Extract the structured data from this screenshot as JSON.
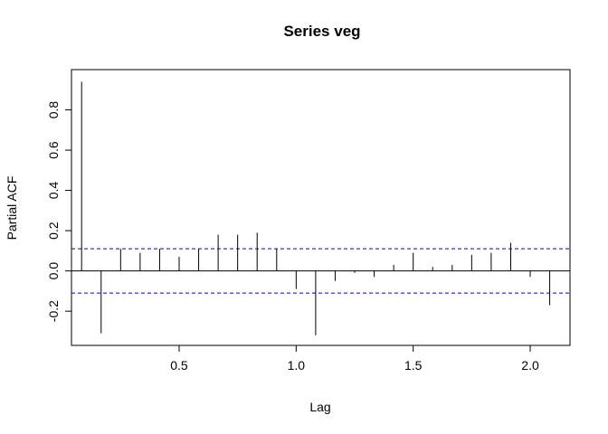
{
  "chart_data": {
    "type": "bar",
    "title": "Series  veg",
    "xlabel": "Lag",
    "ylabel": "Partial ACF",
    "xlim": [
      0.04,
      2.17
    ],
    "ylim": [
      -0.37,
      1.0
    ],
    "xticks": [
      0.5,
      1.0,
      1.5,
      2.0
    ],
    "xtick_labels": [
      "0.5",
      "1.0",
      "1.5",
      "2.0"
    ],
    "yticks": [
      -0.2,
      0.0,
      0.2,
      0.4,
      0.6,
      0.8
    ],
    "ytick_labels": [
      "-0.2",
      "0.0",
      "0.2",
      "0.4",
      "0.6",
      "0.8"
    ],
    "confidence_bound": 0.11,
    "colors": {
      "bars": "#000000",
      "bounds": "#0000cc",
      "zero_line": "#000000"
    },
    "x": [
      0.0833,
      0.1667,
      0.25,
      0.3333,
      0.4167,
      0.5,
      0.5833,
      0.6667,
      0.75,
      0.8333,
      0.9167,
      1.0,
      1.0833,
      1.1667,
      1.25,
      1.3333,
      1.4167,
      1.5,
      1.5833,
      1.6667,
      1.75,
      1.8333,
      1.9167,
      2.0,
      2.0833
    ],
    "values": [
      0.94,
      -0.31,
      0.11,
      0.09,
      0.11,
      0.07,
      0.11,
      0.18,
      0.18,
      0.19,
      0.11,
      -0.09,
      -0.32,
      -0.05,
      -0.01,
      -0.03,
      0.03,
      0.09,
      0.02,
      0.03,
      0.08,
      0.09,
      0.14,
      -0.03,
      -0.17
    ]
  }
}
